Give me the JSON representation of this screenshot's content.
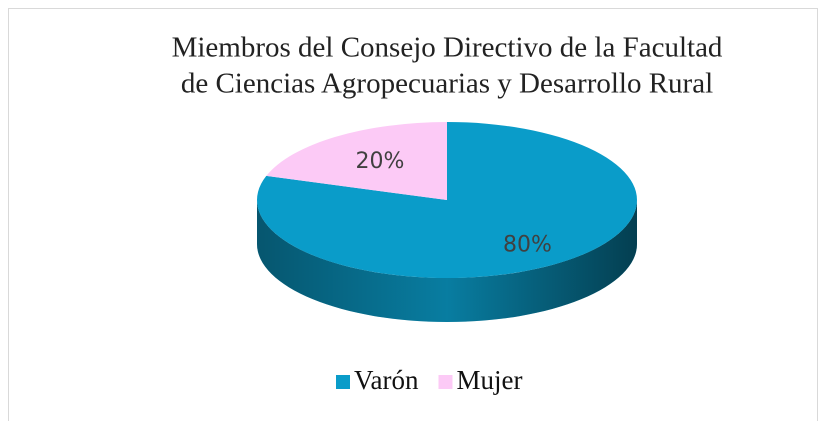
{
  "chart_data": {
    "type": "pie",
    "three_d": true,
    "title": [
      "Miembros del Consejo Directivo de la  Facultad",
      "de Ciencias Agropecuarias y Desarrollo Rural"
    ],
    "categories": [
      "Varón",
      "Mujer"
    ],
    "values": [
      80,
      20
    ],
    "value_labels": [
      "80%",
      "20%"
    ],
    "colors": [
      "#0a9cc9",
      "#fccaf6"
    ],
    "legend": "bottom"
  }
}
